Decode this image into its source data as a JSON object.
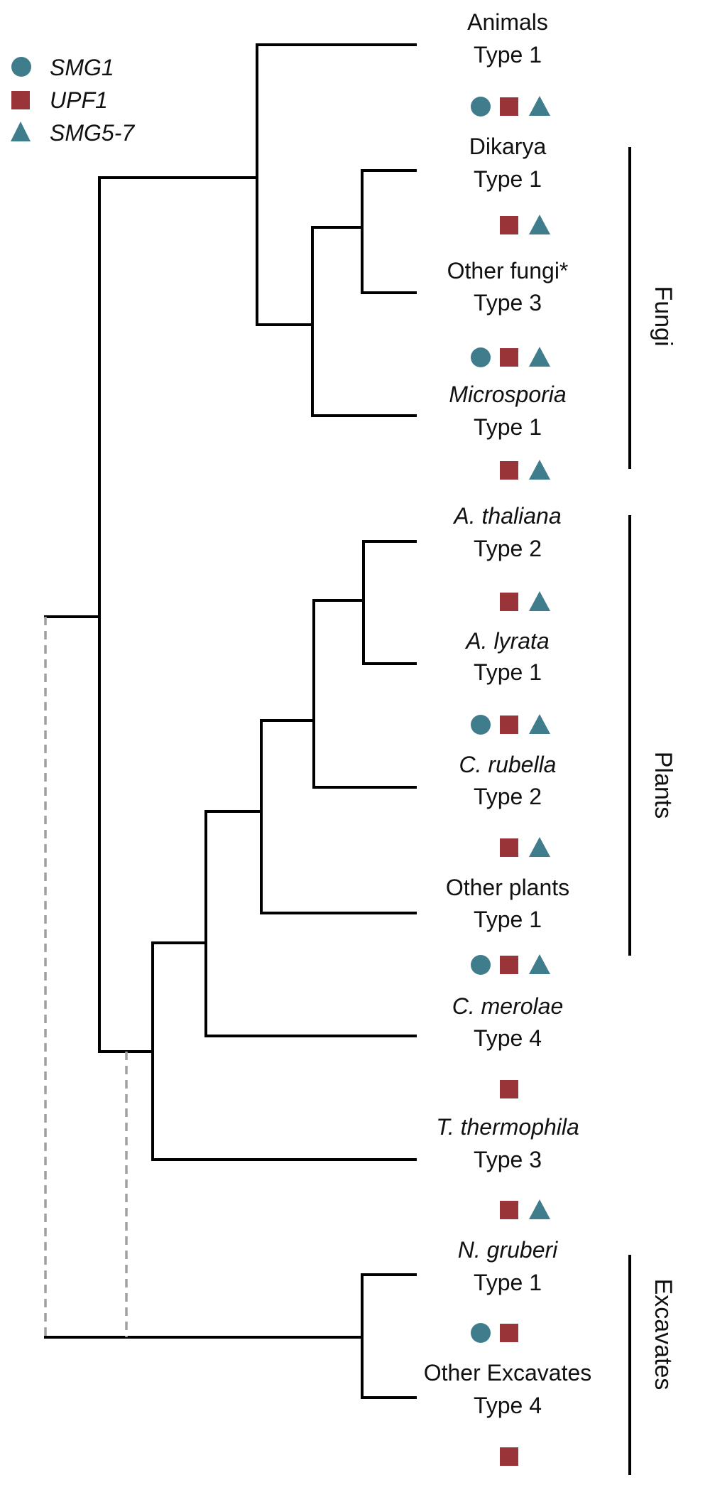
{
  "colors": {
    "circle": "#3f7d8c",
    "square": "#993538",
    "triangle": "#3f7d8c"
  },
  "legend": [
    {
      "shape": "circle",
      "label": "SMG1"
    },
    {
      "shape": "square",
      "label": "UPF1"
    },
    {
      "shape": "triangle",
      "label": "SMG5-7"
    }
  ],
  "taxa": [
    {
      "name": "Animals",
      "italic": false,
      "type": "Type 1",
      "proteins": [
        "circle",
        "square",
        "triangle"
      ]
    },
    {
      "name": "Dikarya",
      "italic": false,
      "type": "Type 1",
      "proteins": [
        "square",
        "triangle"
      ]
    },
    {
      "name": "Other fungi*",
      "italic": false,
      "type": "Type 3",
      "proteins": [
        "circle",
        "square",
        "triangle"
      ]
    },
    {
      "name": "Microsporia",
      "italic": true,
      "type": "Type 1",
      "proteins": [
        "square",
        "triangle"
      ]
    },
    {
      "name": "A. thaliana",
      "italic": true,
      "type": "Type 2",
      "proteins": [
        "square",
        "triangle"
      ]
    },
    {
      "name": "A. lyrata",
      "italic": true,
      "type": "Type 1",
      "proteins": [
        "circle",
        "square",
        "triangle"
      ]
    },
    {
      "name": "C. rubella",
      "italic": true,
      "type": "Type 2",
      "proteins": [
        "square",
        "triangle"
      ]
    },
    {
      "name": "Other plants",
      "italic": false,
      "type": "Type 1",
      "proteins": [
        "circle",
        "square",
        "triangle"
      ]
    },
    {
      "name": "C. merolae",
      "italic": true,
      "type": "Type 4",
      "proteins": [
        "square"
      ]
    },
    {
      "name": "T. thermophila",
      "italic": true,
      "type": "Type 3",
      "proteins": [
        "square",
        "triangle"
      ]
    },
    {
      "name": "N. gruberi",
      "italic": true,
      "type": "Type 1",
      "proteins": [
        "circle",
        "square"
      ]
    },
    {
      "name": "Other Excavates",
      "italic": false,
      "type": "Type 4",
      "proteins": [
        "square"
      ]
    }
  ],
  "groups": [
    "Fungi",
    "Plants",
    "Excavates"
  ]
}
